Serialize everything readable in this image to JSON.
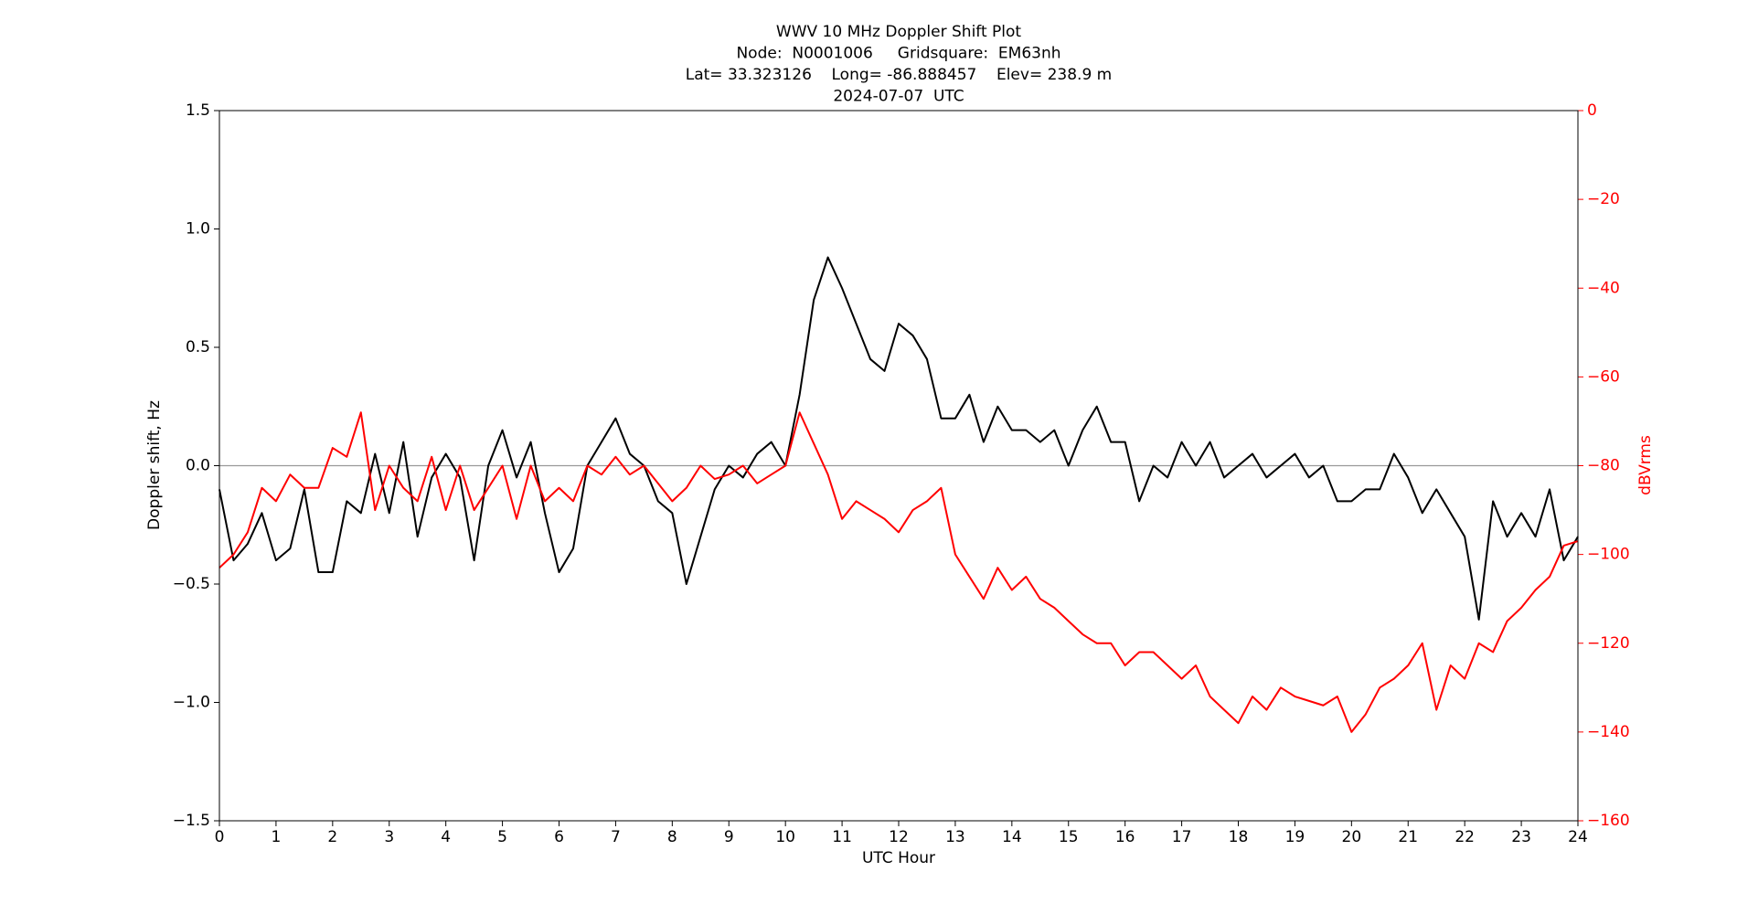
{
  "chart_data": {
    "type": "line",
    "title": [
      "WWV 10 MHz Doppler Shift Plot",
      "Node:  N0001006     Gridsquare:  EM63nh",
      "Lat= 33.323126    Long= -86.888457    Elev= 238.9 m",
      "2024-07-07  UTC"
    ],
    "xlabel": "UTC Hour",
    "ylabel": "Doppler shift, Hz",
    "y2label": "dBVrms",
    "y2color": "#ff0000",
    "hline": 0,
    "hline_color": "#999999",
    "xlim": [
      0,
      24
    ],
    "xticks": [
      0,
      1,
      2,
      3,
      4,
      5,
      6,
      7,
      8,
      9,
      10,
      11,
      12,
      13,
      14,
      15,
      16,
      17,
      18,
      19,
      20,
      21,
      22,
      23,
      24
    ],
    "ylim": [
      -1.5,
      1.5
    ],
    "yticks": [
      {
        "value": -1.5,
        "label": "−1.5"
      },
      {
        "value": -1,
        "label": "−1.0"
      },
      {
        "value": -0.5,
        "label": "−0.5"
      },
      {
        "value": 0,
        "label": "0.0"
      },
      0.5,
      {
        "value": 1,
        "label": "1.0"
      },
      1.5
    ],
    "y2lim": [
      -160,
      0
    ],
    "y2ticks": [
      {
        "value": -160,
        "label": "−160"
      },
      {
        "value": -140,
        "label": "−140"
      },
      {
        "value": -120,
        "label": "−120"
      },
      {
        "value": -100,
        "label": "−100"
      },
      {
        "value": -80,
        "label": "−80"
      },
      {
        "value": -60,
        "label": "−60"
      },
      {
        "value": -40,
        "label": "−40"
      },
      {
        "value": -20,
        "label": "−20"
      },
      0
    ],
    "x": [
      0,
      0.25,
      0.5,
      0.75,
      1,
      1.25,
      1.5,
      1.75,
      2,
      2.25,
      2.5,
      2.75,
      3,
      3.25,
      3.5,
      3.75,
      4,
      4.25,
      4.5,
      4.75,
      5,
      5.25,
      5.5,
      5.75,
      6,
      6.25,
      6.5,
      6.75,
      7,
      7.25,
      7.5,
      7.75,
      8,
      8.25,
      8.5,
      8.75,
      9,
      9.25,
      9.5,
      9.75,
      10,
      10.25,
      10.5,
      10.75,
      11,
      11.25,
      11.5,
      11.75,
      12,
      12.25,
      12.5,
      12.75,
      13,
      13.25,
      13.5,
      13.75,
      14,
      14.25,
      14.5,
      14.75,
      15,
      15.25,
      15.5,
      15.75,
      16,
      16.25,
      16.5,
      16.75,
      17,
      17.25,
      17.5,
      17.75,
      18,
      18.25,
      18.5,
      18.75,
      19,
      19.25,
      19.5,
      19.75,
      20,
      20.25,
      20.5,
      20.75,
      21,
      21.25,
      21.5,
      21.75,
      22,
      22.25,
      22.5,
      22.75,
      23,
      23.25,
      23.5,
      23.75,
      24
    ],
    "series": [
      {
        "color": "#000000",
        "values": [
          -0.1,
          -0.4,
          -0.33,
          -0.2,
          -0.4,
          -0.35,
          -0.1,
          -0.45,
          -0.45,
          -0.15,
          -0.2,
          0.05,
          -0.2,
          0.1,
          -0.3,
          -0.05,
          0.05,
          -0.05,
          -0.4,
          0,
          0.15,
          -0.05,
          0.1,
          -0.2,
          -0.45,
          -0.35,
          0,
          0.1,
          0.2,
          0.05,
          0,
          -0.15,
          -0.2,
          -0.5,
          -0.3,
          -0.1,
          0,
          -0.05,
          0.05,
          0.1,
          0,
          0.3,
          0.7,
          0.88,
          0.75,
          0.6,
          0.45,
          0.4,
          0.6,
          0.55,
          0.45,
          0.2,
          0.2,
          0.3,
          0.1,
          0.25,
          0.15,
          0.15,
          0.1,
          0.15,
          0,
          0.15,
          0.25,
          0.1,
          0.1,
          -0.15,
          0,
          -0.05,
          0.1,
          0,
          0.1,
          -0.05,
          0,
          0.05,
          -0.05,
          0,
          0.05,
          -0.05,
          0,
          -0.15,
          -0.15,
          -0.1,
          -0.1,
          0.05,
          -0.05,
          -0.2,
          -0.1,
          -0.2,
          -0.3,
          -0.65,
          -0.15,
          -0.3,
          -0.2,
          -0.3,
          -0.1,
          -0.4,
          -0.3
        ]
      },
      {
        "color": "#ff0000",
        "axis": "y2",
        "values": [
          -103,
          -100,
          -95,
          -85,
          -88,
          -82,
          -85,
          -85,
          -76,
          -78,
          -68,
          -90,
          -80,
          -85,
          -88,
          -78,
          -90,
          -80,
          -90,
          -85,
          -80,
          -92,
          -80,
          -88,
          -85,
          -88,
          -80,
          -82,
          -78,
          -82,
          -80,
          -84,
          -88,
          -85,
          -80,
          -83,
          -82,
          -80,
          -84,
          -82,
          -80,
          -68,
          -75,
          -82,
          -92,
          -88,
          -90,
          -92,
          -95,
          -90,
          -88,
          -85,
          -100,
          -105,
          -110,
          -103,
          -108,
          -105,
          -110,
          -112,
          -115,
          -118,
          -120,
          -120,
          -125,
          -122,
          -122,
          -125,
          -128,
          -125,
          -132,
          -135,
          -138,
          -132,
          -135,
          -130,
          -132,
          -133,
          -134,
          -132,
          -140,
          -136,
          -130,
          -128,
          -125,
          -120,
          -135,
          -125,
          -128,
          -120,
          -122,
          -115,
          -112,
          -108,
          -105,
          -98,
          -97
        ]
      }
    ]
  }
}
